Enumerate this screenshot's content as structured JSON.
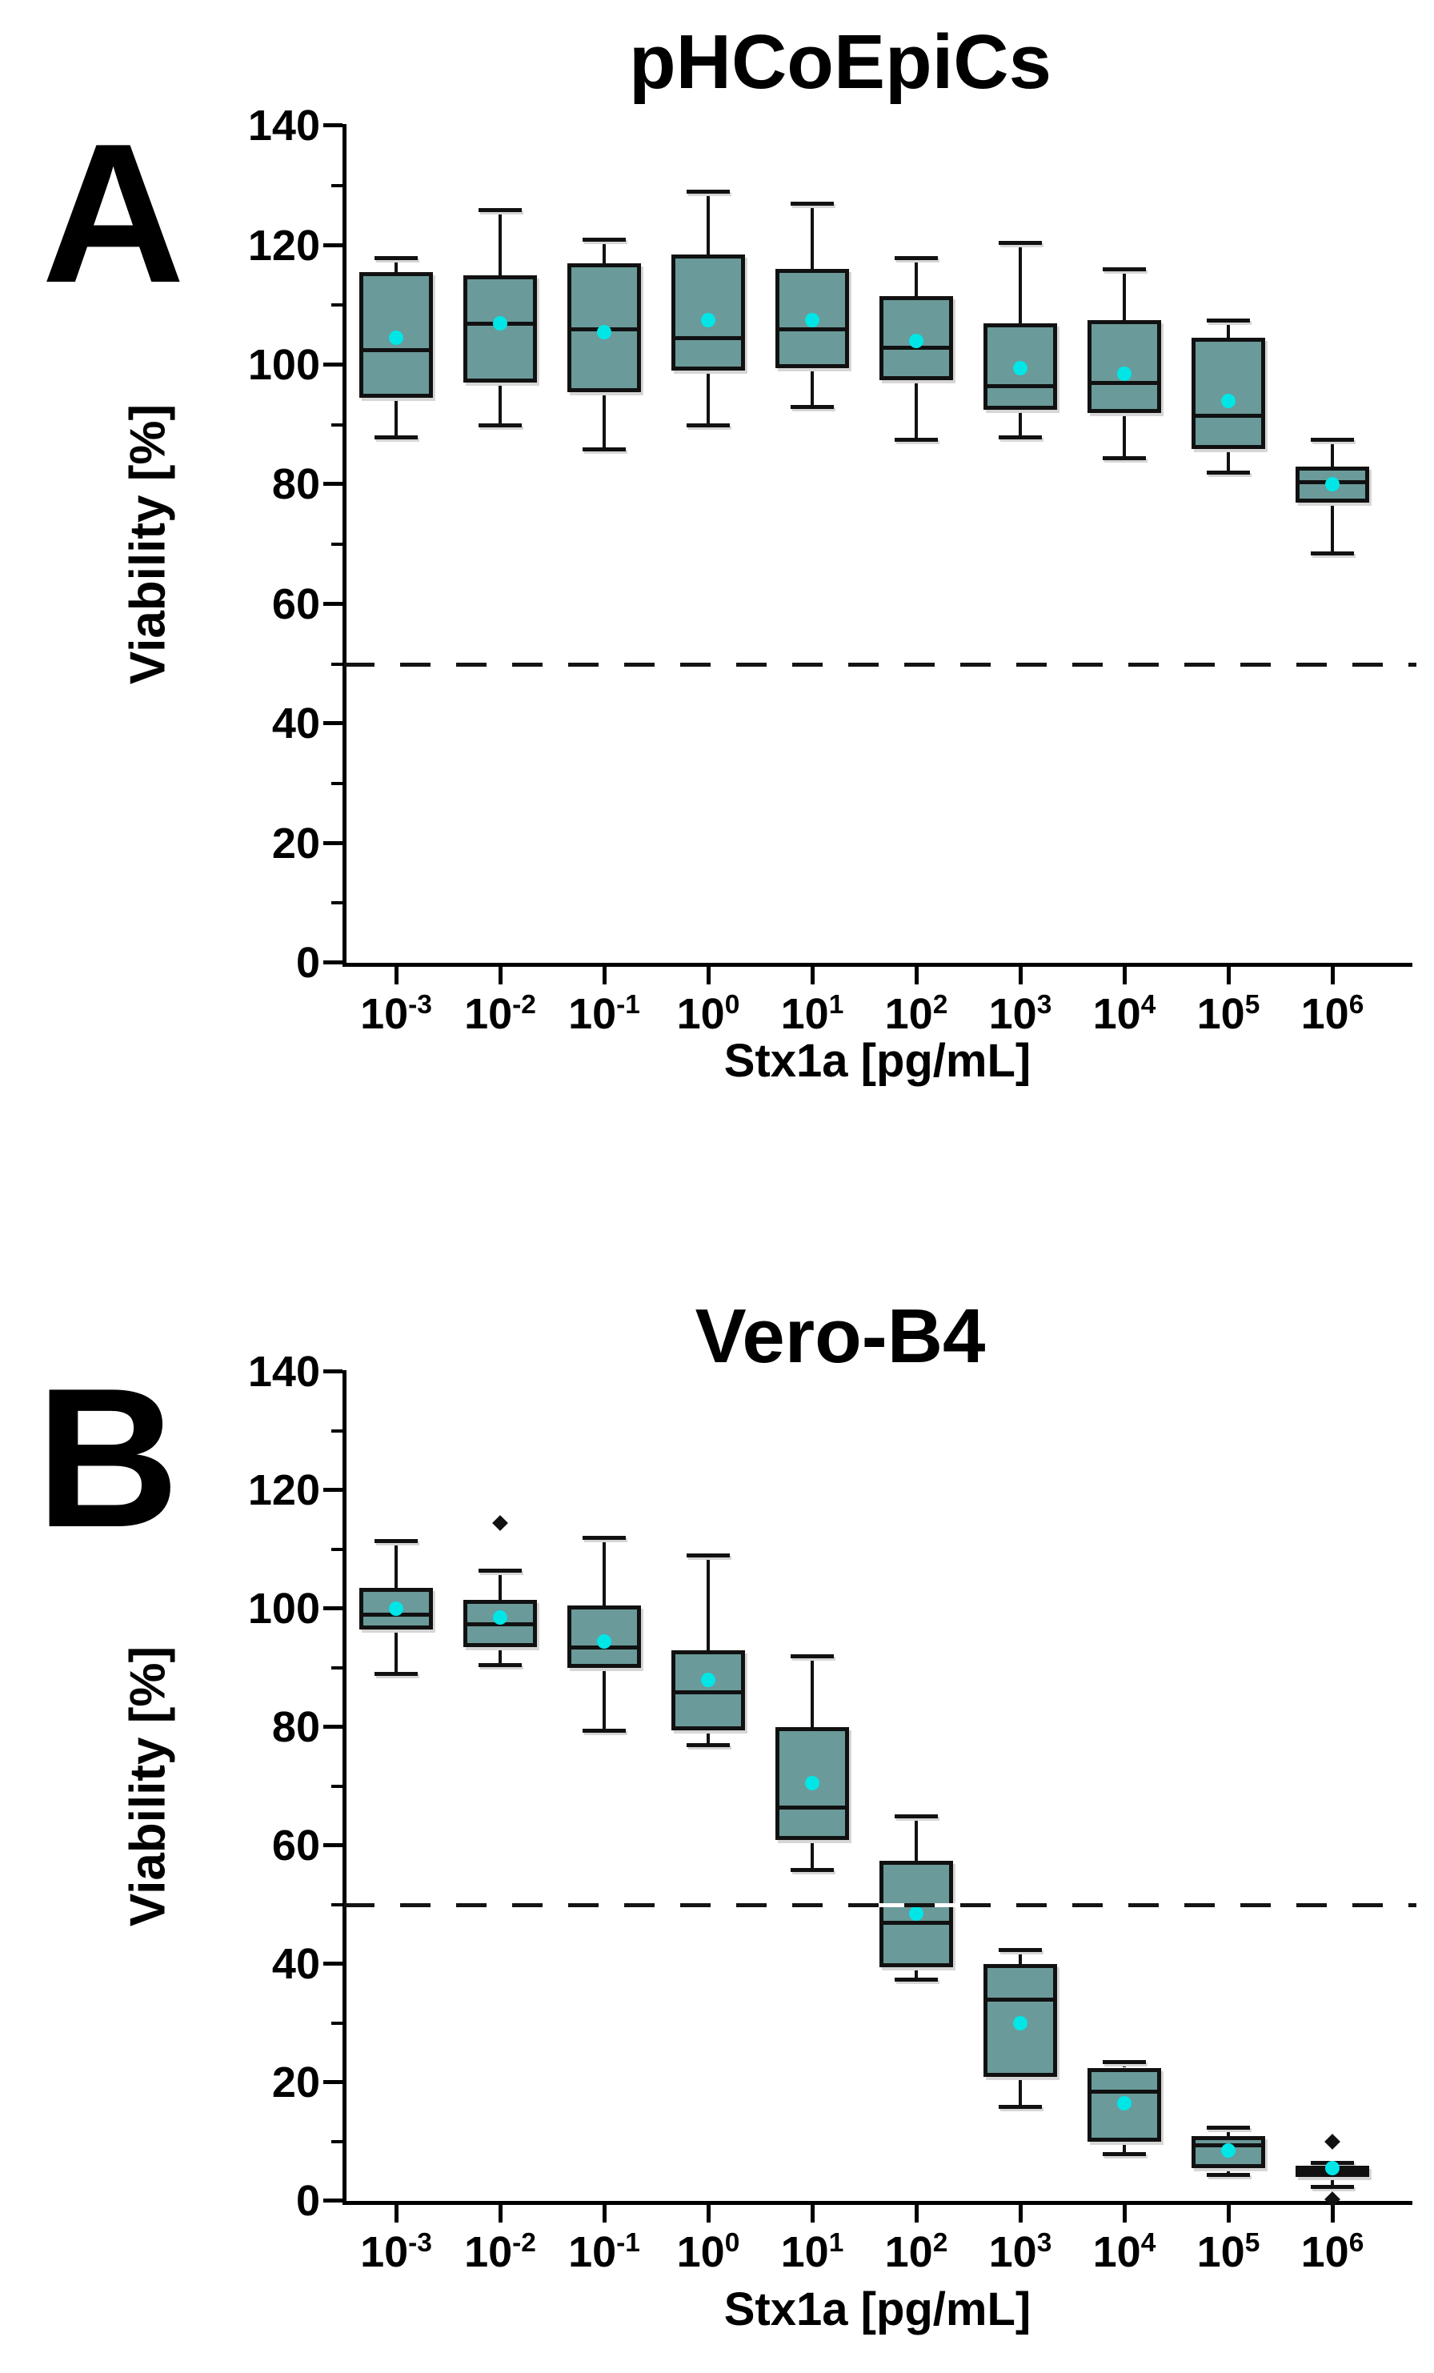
{
  "figure": {
    "colors": {
      "background": "#FFFFFF",
      "box_fill": "#6A9A99",
      "box_border": "#111111",
      "mean_marker": "#00E6E6",
      "axis": "#000000",
      "reference_line": "#141414"
    },
    "y_axis": {
      "label": "Viability [%]",
      "ticks": [
        0,
        20,
        40,
        60,
        80,
        100,
        120,
        140
      ],
      "range": [
        0,
        140
      ],
      "minor_tick_step": 10
    },
    "x_axis": {
      "label": "Stx1a [pg/mL]",
      "tick_base": "10",
      "tick_exponents": [
        -3,
        -2,
        -1,
        0,
        1,
        2,
        3,
        4,
        5,
        6
      ]
    },
    "reference_line_value": 50
  },
  "chart_data": [
    {
      "type": "boxplot",
      "panel_letter": "A",
      "title": "pHCoEpiCs",
      "xlabel": "Stx1a [pg/mL]",
      "ylabel": "Viability [%]",
      "ylim": [
        0,
        140
      ],
      "y_ticks": [
        0,
        20,
        40,
        60,
        80,
        100,
        120,
        140
      ],
      "reference_line": 50,
      "grid": false,
      "legend": null,
      "categories": [
        "10^-3",
        "10^-2",
        "10^-1",
        "10^0",
        "10^1",
        "10^2",
        "10^3",
        "10^4",
        "10^5",
        "10^6"
      ],
      "category_exponents": [
        -3,
        -2,
        -1,
        0,
        1,
        2,
        3,
        4,
        5,
        6
      ],
      "boxes": [
        {
          "whislo": 88,
          "q1": 94.5,
          "med": 102.5,
          "mean": 104.5,
          "q3": 115.5,
          "whishi": 118,
          "outliers": []
        },
        {
          "whislo": 90,
          "q1": 97,
          "med": 107,
          "mean": 107,
          "q3": 115,
          "whishi": 126,
          "outliers": []
        },
        {
          "whislo": 86,
          "q1": 95.5,
          "med": 106,
          "mean": 105.5,
          "q3": 117,
          "whishi": 121,
          "outliers": []
        },
        {
          "whislo": 90,
          "q1": 99,
          "med": 104.5,
          "mean": 107.5,
          "q3": 118.5,
          "whishi": 129,
          "outliers": []
        },
        {
          "whislo": 93,
          "q1": 99.5,
          "med": 106,
          "mean": 107.5,
          "q3": 116,
          "whishi": 127,
          "outliers": []
        },
        {
          "whislo": 87.5,
          "q1": 97.5,
          "med": 103,
          "mean": 104,
          "q3": 111.5,
          "whishi": 118,
          "outliers": []
        },
        {
          "whislo": 88,
          "q1": 92.5,
          "med": 96.5,
          "mean": 99.5,
          "q3": 107,
          "whishi": 120.5,
          "outliers": []
        },
        {
          "whislo": 84.5,
          "q1": 92,
          "med": 97,
          "mean": 98.5,
          "q3": 107.5,
          "whishi": 116,
          "outliers": []
        },
        {
          "whislo": 82,
          "q1": 86,
          "med": 91.5,
          "mean": 94,
          "q3": 104.5,
          "whishi": 107.5,
          "outliers": []
        },
        {
          "whislo": 68.5,
          "q1": 77,
          "med": 80.5,
          "mean": 80,
          "q3": 83,
          "whishi": 87.5,
          "outliers": []
        }
      ]
    },
    {
      "type": "boxplot",
      "panel_letter": "B",
      "title": "Vero-B4",
      "xlabel": "Stx1a [pg/mL]",
      "ylabel": "Viability [%]",
      "ylim": [
        0,
        140
      ],
      "y_ticks": [
        0,
        20,
        40,
        60,
        80,
        100,
        120,
        140
      ],
      "reference_line": 50,
      "grid": false,
      "legend": null,
      "categories": [
        "10^-3",
        "10^-2",
        "10^-1",
        "10^0",
        "10^1",
        "10^2",
        "10^3",
        "10^4",
        "10^5",
        "10^6"
      ],
      "category_exponents": [
        -3,
        -2,
        -1,
        0,
        1,
        2,
        3,
        4,
        5,
        6
      ],
      "boxes": [
        {
          "whislo": 89,
          "q1": 96.5,
          "med": 99,
          "mean": 100,
          "q3": 103.5,
          "whishi": 111.5,
          "outliers": []
        },
        {
          "whislo": 90.5,
          "q1": 93.5,
          "med": 97.5,
          "mean": 98.5,
          "q3": 101.5,
          "whishi": 106.5,
          "outliers": [
            114.5
          ]
        },
        {
          "whislo": 79.5,
          "q1": 90,
          "med": 93.5,
          "mean": 94.5,
          "q3": 100.5,
          "whishi": 112,
          "outliers": []
        },
        {
          "whislo": 77,
          "q1": 79.5,
          "med": 86,
          "mean": 88,
          "q3": 93,
          "whishi": 109,
          "outliers": []
        },
        {
          "whislo": 56,
          "q1": 61,
          "med": 66.5,
          "mean": 70.5,
          "q3": 80,
          "whishi": 92,
          "outliers": []
        },
        {
          "whislo": 37.5,
          "q1": 39.5,
          "med": 47,
          "mean": 48.5,
          "q3": 57.5,
          "whishi": 65,
          "outliers": []
        },
        {
          "whislo": 16,
          "q1": 21,
          "med": 34,
          "mean": 30,
          "q3": 40,
          "whishi": 42.5,
          "outliers": []
        },
        {
          "whislo": 8,
          "q1": 10,
          "med": 18.5,
          "mean": 16.5,
          "q3": 22.5,
          "whishi": 23.5,
          "outliers": []
        },
        {
          "whislo": 4.5,
          "q1": 5.5,
          "med": 9.5,
          "mean": 8.5,
          "q3": 11,
          "whishi": 12.5,
          "outliers": []
        },
        {
          "whislo": 2.5,
          "q1": 4,
          "med": 5,
          "mean": 5.5,
          "q3": 6,
          "whishi": 6.5,
          "outliers": [
            10,
            0.3
          ]
        }
      ]
    }
  ]
}
